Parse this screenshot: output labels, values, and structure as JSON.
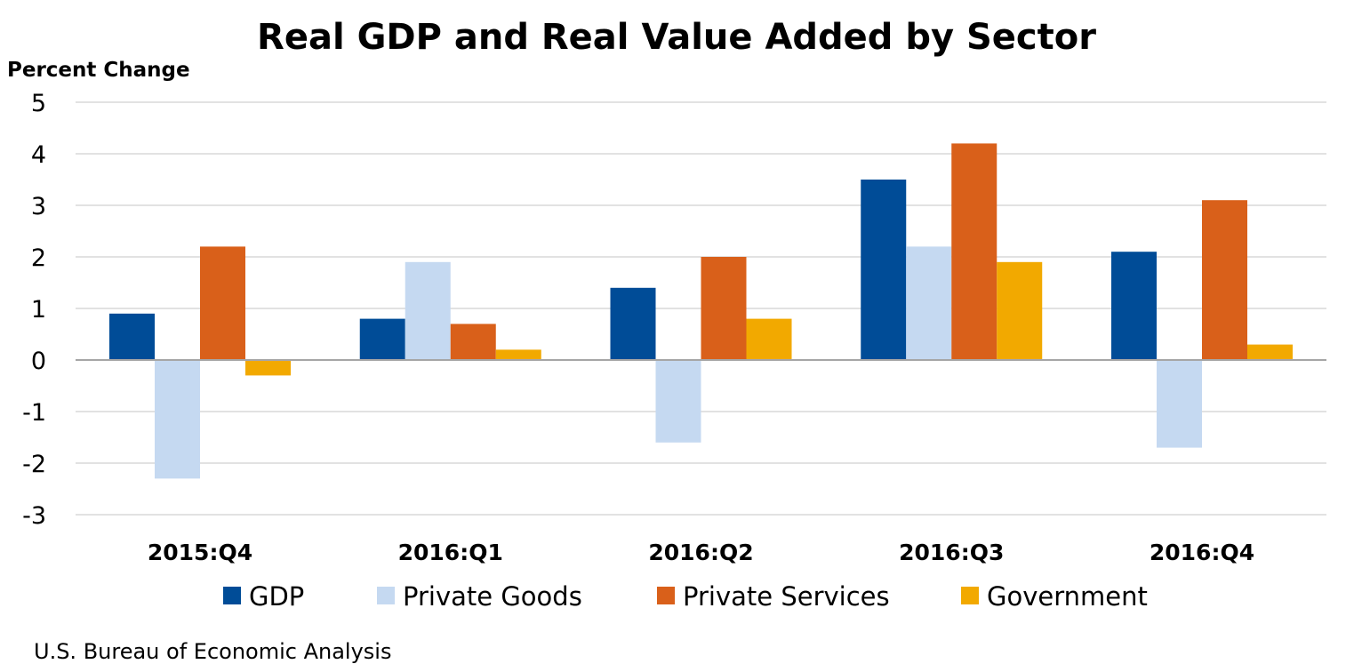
{
  "chart_data": {
    "type": "bar",
    "title": "Real GDP and Real Value Added by Sector",
    "ylabel": "Percent Change",
    "xlabel": "",
    "ylim": [
      -3,
      5
    ],
    "yticks": [
      5,
      4,
      3,
      2,
      1,
      0,
      -1,
      -2,
      -3
    ],
    "categories": [
      "2015:Q4",
      "2016:Q1",
      "2016:Q2",
      "2016:Q3",
      "2016:Q4"
    ],
    "series": [
      {
        "name": "GDP",
        "color": "#004c97",
        "values": [
          0.9,
          0.8,
          1.4,
          3.5,
          2.1
        ]
      },
      {
        "name": "Private Goods",
        "color": "#c5d9f1",
        "values": [
          -2.3,
          1.9,
          -1.6,
          2.2,
          -1.7
        ]
      },
      {
        "name": "Private Services",
        "color": "#d9601a",
        "values": [
          2.2,
          0.7,
          2.0,
          4.2,
          3.1
        ]
      },
      {
        "name": "Government",
        "color": "#f2a900",
        "values": [
          -0.3,
          0.2,
          0.8,
          1.9,
          0.3
        ]
      }
    ],
    "grid": true,
    "legend_position": "bottom",
    "source": "U.S. Bureau of Economic Analysis"
  }
}
